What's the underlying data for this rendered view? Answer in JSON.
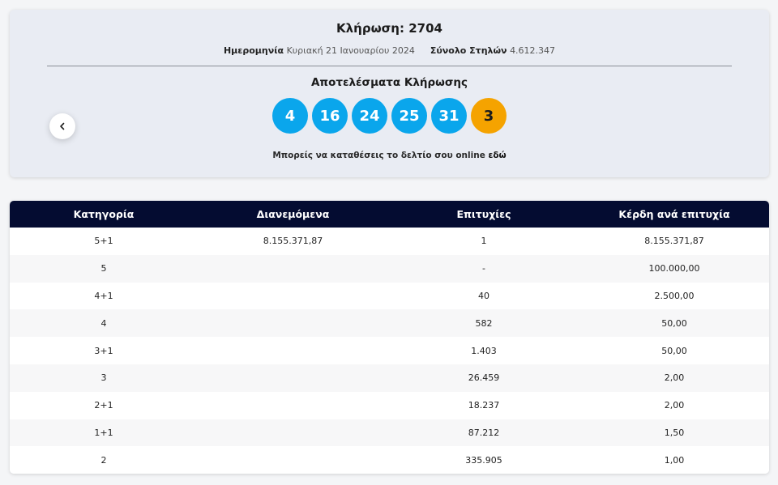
{
  "draw": {
    "title": "Κλήρωση: 2704",
    "date_label": "Ημερομηνία",
    "date_value": "Κυριακή 21 Ιανουαρίου 2024",
    "total_label": "Σύνολο Στηλών",
    "total_value": "4.612.347",
    "results_title": "Αποτελέσματα Κλήρωσης",
    "numbers": [
      "4",
      "16",
      "24",
      "25",
      "31"
    ],
    "joker": "3",
    "online_text": "Μπορείς να καταθέσεις το δελτίο σου online",
    "online_link": "εδώ"
  },
  "colors": {
    "ball": "#0aa6ec",
    "joker_ball": "#f5a300",
    "table_header": "#040c31"
  },
  "icons": {
    "prev": "chevron-left-icon"
  },
  "table": {
    "headers": [
      "Κατηγορία",
      "Διανεμόμενα",
      "Επιτυχίες",
      "Κέρδη ανά επιτυχία"
    ],
    "rows": [
      [
        "5+1",
        "8.155.371,87",
        "1",
        "8.155.371,87"
      ],
      [
        "5",
        "",
        "-",
        "100.000,00"
      ],
      [
        "4+1",
        "",
        "40",
        "2.500,00"
      ],
      [
        "4",
        "",
        "582",
        "50,00"
      ],
      [
        "3+1",
        "",
        "1.403",
        "50,00"
      ],
      [
        "3",
        "",
        "26.459",
        "2,00"
      ],
      [
        "2+1",
        "",
        "18.237",
        "2,00"
      ],
      [
        "1+1",
        "",
        "87.212",
        "1,50"
      ],
      [
        "2",
        "",
        "335.905",
        "1,00"
      ]
    ]
  }
}
